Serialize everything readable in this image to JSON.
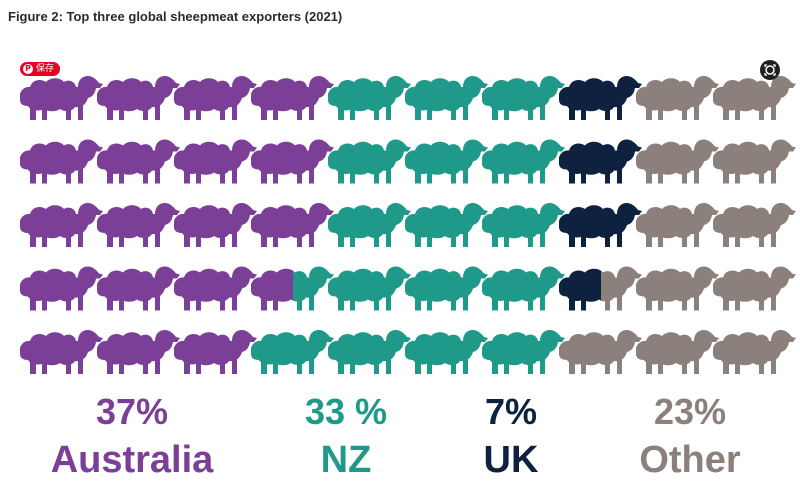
{
  "title": "Figure 2: Top three global sheepmeat exporters (2021)",
  "save_badge": {
    "label": "保存",
    "icon": "pinterest-icon"
  },
  "lens_button": {
    "icon": "visual-search-icon"
  },
  "chart_data": {
    "type": "pictograph",
    "unit": "sheep",
    "total_icons": 50,
    "rows": 5,
    "columns": 10,
    "fill_order": "column-major",
    "series": [
      {
        "name": "Australia",
        "value": 37,
        "label": "37%",
        "color": "#7b3f98"
      },
      {
        "name": "NZ",
        "value": 33,
        "label": "33 %",
        "color": "#1f9a8a"
      },
      {
        "name": "UK",
        "value": 7,
        "label": "7%",
        "color": "#0e2240"
      },
      {
        "name": "Other",
        "value": 23,
        "label": "23%",
        "color": "#8b807b"
      }
    ]
  }
}
